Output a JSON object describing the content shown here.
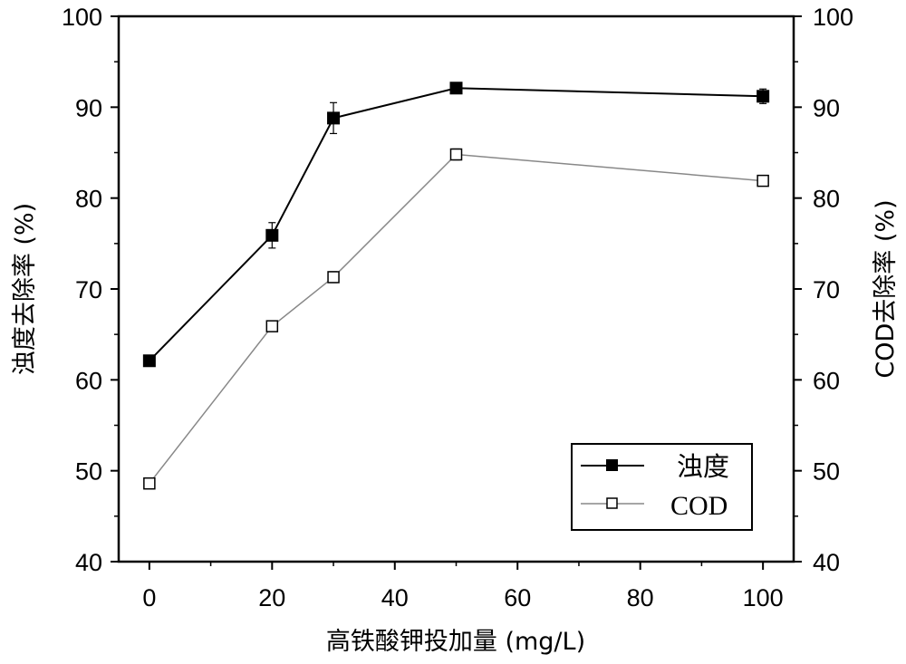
{
  "chart_data": {
    "type": "line",
    "x": [
      0,
      20,
      30,
      50,
      100
    ],
    "xlabel": "高铁酸钾投加量 (mg/L)",
    "ylabel_left": "浊度去除率 (%)",
    "ylabel_right": "COD去除率 (%)",
    "xlim": [
      -5,
      105
    ],
    "ylim": [
      40,
      100
    ],
    "xticks": [
      0,
      20,
      40,
      60,
      80,
      100
    ],
    "yticks": [
      40,
      50,
      60,
      70,
      80,
      90,
      100
    ],
    "grid": false,
    "legend_position": "bottom-right",
    "series": [
      {
        "name": "浊度",
        "values": [
          62.1,
          75.9,
          88.8,
          92.1,
          91.2
        ],
        "errors": [
          0.3,
          1.4,
          1.7,
          0.4,
          0.8
        ],
        "marker": "filled-square",
        "color": "#000000"
      },
      {
        "name": "COD",
        "values": [
          48.6,
          65.9,
          71.3,
          84.8,
          81.9
        ],
        "errors": [
          0.5,
          0.4,
          0.6,
          0.6,
          0.5
        ],
        "marker": "open-square",
        "color": "#888888"
      }
    ]
  }
}
